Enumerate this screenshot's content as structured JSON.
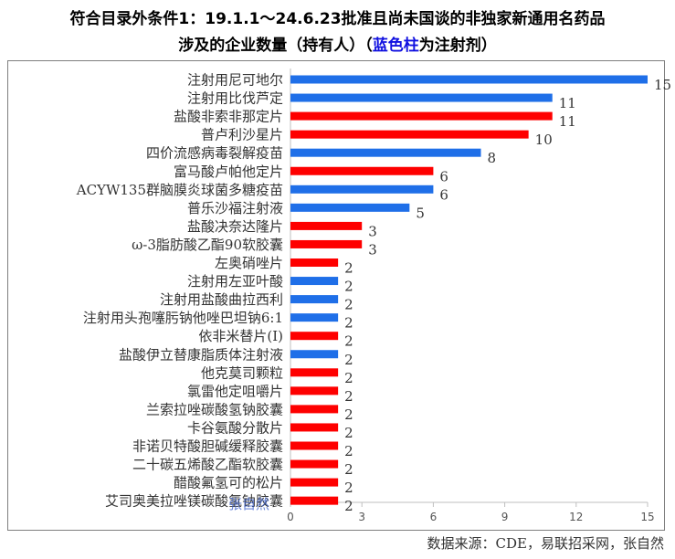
{
  "title_line1": "符合目录外条件1：19.1.1～24.6.23批准且尚未国谈的非独家新通用名药品",
  "title_line2_pre": "涉及的企业数量（持有人）（",
  "title_line2_blue": "蓝色柱",
  "title_line2_post": "为注射剂）",
  "source": "数据来源：CDE，易联招采网，张自然",
  "watermark": "张自然",
  "colors": {
    "injection": "#1f6fe8",
    "other": "#fe0000"
  },
  "chart_data": {
    "type": "bar",
    "orientation": "horizontal",
    "title": "",
    "xlabel": "",
    "ylabel": "",
    "xlim": [
      0,
      15
    ],
    "xticks": [
      0,
      3,
      6,
      9,
      12,
      15
    ],
    "grid": false,
    "categories": [
      "注射用尼可地尔",
      "注射用比伐芦定",
      "盐酸非索非那定片",
      "普卢利沙星片",
      "四价流感病毒裂解疫苗",
      "富马酸卢帕他定片",
      "ACYW135群脑膜炎球菌多糖疫苗",
      "普乐沙福注射液",
      "盐酸决奈达隆片",
      "ω-3脂肪酸乙酯90软胶囊",
      "左奥硝唑片",
      "注射用左亚叶酸",
      "注射用盐酸曲拉西利",
      "注射用头孢噻肟钠他唑巴坦钠6:1",
      "依非米替片(Ⅰ)",
      "盐酸伊立替康脂质体注射液",
      "他克莫司颗粒",
      "氯雷他定咀嚼片",
      "兰索拉唑碳酸氢钠胶囊",
      "卡谷氨酸分散片",
      "非诺贝特酸胆碱缓释胶囊",
      "二十碳五烯酸乙酯软胶囊",
      "醋酸氟氢可的松片",
      "艾司奥美拉唑镁碳酸氢钠胶囊"
    ],
    "values": [
      15,
      11,
      11,
      10,
      8,
      6,
      6,
      5,
      3,
      3,
      2,
      2,
      2,
      2,
      2,
      2,
      2,
      2,
      2,
      2,
      2,
      2,
      2,
      2
    ],
    "is_injection": [
      true,
      true,
      false,
      false,
      true,
      false,
      true,
      true,
      false,
      false,
      false,
      true,
      true,
      true,
      false,
      true,
      false,
      false,
      false,
      false,
      false,
      false,
      false,
      false
    ]
  }
}
